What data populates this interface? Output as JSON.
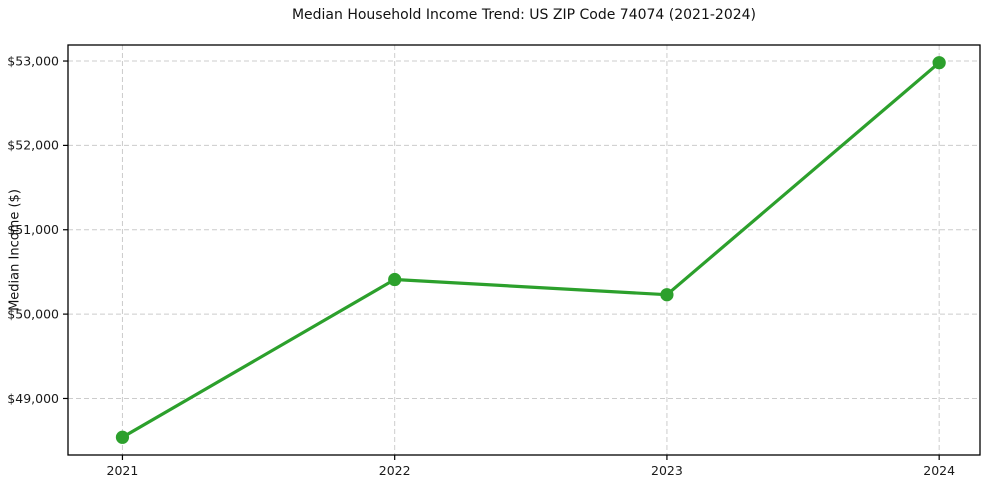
{
  "chart_data": {
    "type": "line",
    "title": "Median Household Income Trend: US ZIP Code 74074 (2021-2024)",
    "xlabel": "",
    "ylabel": "Median Income ($)",
    "categories": [
      "2021",
      "2022",
      "2023",
      "2024"
    ],
    "x": [
      2021,
      2022,
      2023,
      2024
    ],
    "series": [
      {
        "name": "Median Household Income",
        "values": [
          48540,
          50410,
          50230,
          52980
        ],
        "color": "#2ca02c",
        "marker": "circle",
        "line_width": 3.2,
        "marker_radius": 6.6
      }
    ],
    "yticks": [
      49000,
      50000,
      51000,
      52000,
      53000
    ],
    "ytick_labels": [
      "$49,000",
      "$50,000",
      "$51,000",
      "$52,000",
      "$53,000"
    ],
    "xlim": [
      2020.8,
      2024.15
    ],
    "ylim": [
      48330,
      53190
    ],
    "grid": true,
    "grid_color": "#cccccc",
    "grid_dash": "5,3",
    "spine_color": "#000000",
    "background_color": "#ffffff",
    "legend": "none"
  }
}
